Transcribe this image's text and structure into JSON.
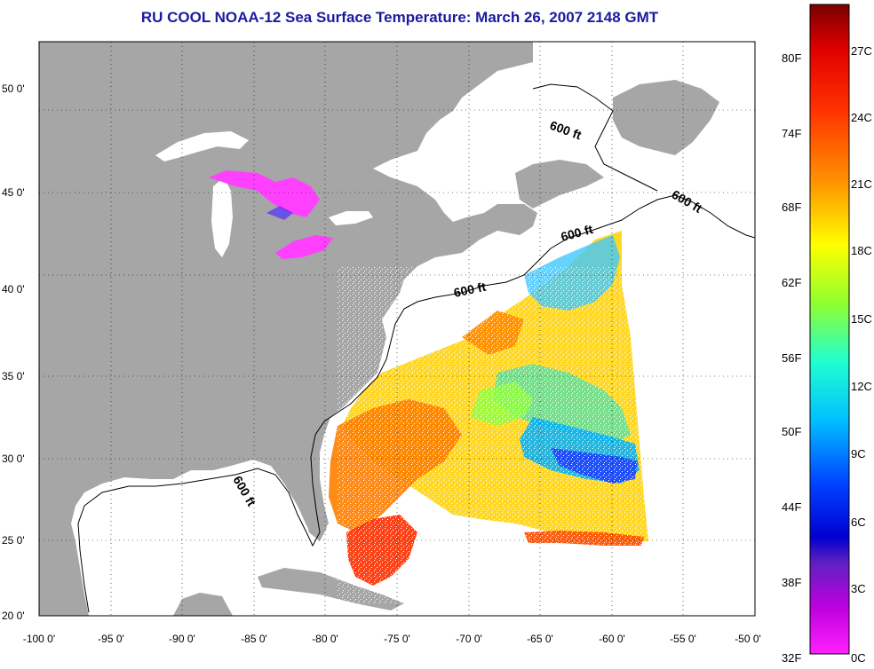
{
  "title": "RU COOL  NOAA-12  Sea Surface Temperature:  March 26, 2007 2148 GMT",
  "map": {
    "lon_ticks": [
      "-100 0'",
      "-95 0'",
      "-90 0'",
      "-85 0'",
      "-80 0'",
      "-75 0'",
      "-70 0'",
      "-65 0'",
      "-60 0'",
      "-55 0'",
      "-50 0'"
    ],
    "lat_ticks": [
      "50 0'",
      "45 0'",
      "40 0'",
      "35 0'",
      "30 0'",
      "25 0'",
      "20 0'"
    ],
    "isobath_labels": [
      "600 ft",
      "600 ft",
      "600 ft",
      "600 ft",
      "600 ft"
    ],
    "land_color": "#a6a6a6",
    "water_no_data_color": "#ffffff"
  },
  "colorbar": {
    "fahrenheit_labels": [
      "80F",
      "74F",
      "68F",
      "62F",
      "56F",
      "50F",
      "44F",
      "38F",
      "32F"
    ],
    "celsius_labels": [
      "27C",
      "24C",
      "21C",
      "18C",
      "15C",
      "12C",
      "9C",
      "6C",
      "3C",
      "0C"
    ],
    "colors": [
      "#8b0000",
      "#ff0000",
      "#ff8000",
      "#ffff00",
      "#80ff40",
      "#00ffff",
      "#0080ff",
      "#0000ff",
      "#8000c0",
      "#ff00ff"
    ]
  }
}
